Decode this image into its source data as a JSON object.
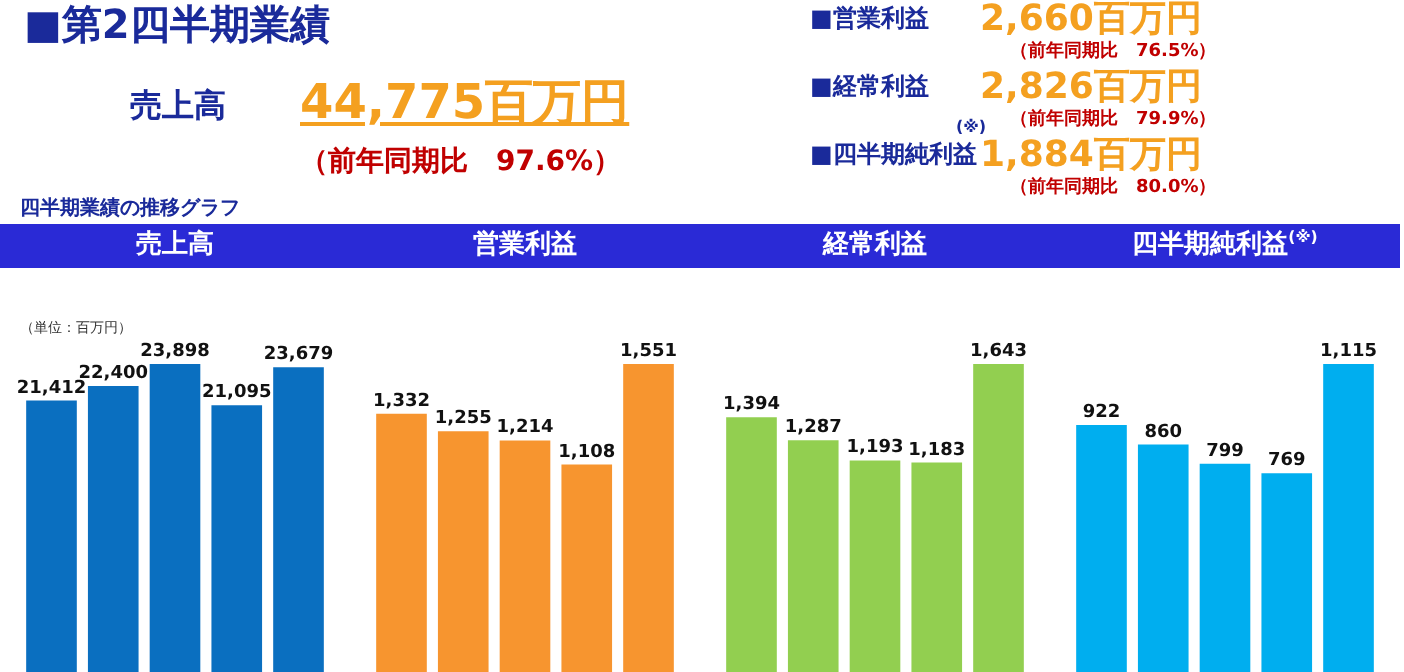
{
  "chart_data": [
    {
      "type": "other",
      "title": "■第2四半期業績",
      "subtitle": "四半期業績の推移グラフ",
      "annotations": [
        "売上高",
        "44,775百万円",
        "（前年同期比　97.6%）",
        "■営業利益",
        "2,660百万円",
        "（前年同期比　76.5%）",
        "■経常利益",
        "2,826百万円",
        "（前年同期比　79.9%）",
        "■四半期純利益",
        "(※)",
        "1,884百万円",
        "（前年同期比　80.0%）"
      ]
    },
    {
      "type": "bar",
      "title": "売上高",
      "categories": [
        null,
        null,
        null,
        null,
        null
      ],
      "values": [
        21412,
        22400,
        23898,
        21095,
        23679
      ],
      "value_labels": [
        "21,412",
        "22,400",
        "23,898",
        "21,095",
        "23,679"
      ],
      "color": "#0a6fc0",
      "annotations": [
        "（単位：百万円）"
      ]
    },
    {
      "type": "bar",
      "title": "営業利益",
      "categories": [
        null,
        null,
        null,
        null,
        null
      ],
      "values": [
        1332,
        1255,
        1214,
        1108,
        1551
      ],
      "value_labels": [
        "1,332",
        "1,255",
        "1,214",
        "1,108",
        "1,551"
      ],
      "color": "#f7952f"
    },
    {
      "type": "bar",
      "title": "経常利益",
      "categories": [
        null,
        null,
        null,
        null,
        null
      ],
      "values": [
        1394,
        1287,
        1193,
        1183,
        1643
      ],
      "value_labels": [
        "1,394",
        "1,287",
        "1,193",
        "1,183",
        "1,643"
      ],
      "color": "#92cf50"
    },
    {
      "type": "bar",
      "title": "四半期純利益$^{(※)}$",
      "categories": [
        null,
        null,
        null,
        null,
        null
      ],
      "values": [
        922,
        860,
        799,
        769,
        1115
      ],
      "value_labels": [
        "922",
        "860",
        "799",
        "769",
        "1,115"
      ],
      "color": "#00aeef"
    }
  ]
}
